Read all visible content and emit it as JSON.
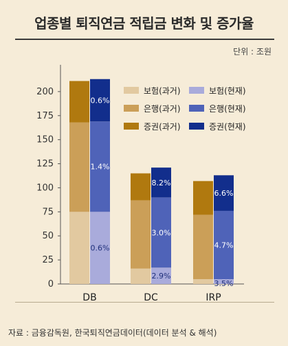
{
  "title": "업종별 퇴직연금 적립금 변화 및 증가율",
  "unit": "단위 : 조원",
  "source": "자료 : 금융감독원, 한국퇴직연금데이터(데이터 분석 & 해석)",
  "chart_data": {
    "type": "bar",
    "stacked": true,
    "categories": [
      "DB",
      "DC",
      "IRP"
    ],
    "ylim": [
      0,
      225
    ],
    "yticks": [
      0,
      25,
      50,
      75,
      100,
      125,
      150,
      175,
      200
    ],
    "grid": false,
    "legend_position": "top-right",
    "groups": [
      {
        "group": "past",
        "series": [
          {
            "name": "보험(과거)",
            "color": "#e2c9a0",
            "values": [
              75,
              16,
              5
            ]
          },
          {
            "name": "은행(과거)",
            "color": "#cb9f58",
            "values": [
              93,
              71,
              67
            ]
          },
          {
            "name": "증권(과거)",
            "color": "#b0790f",
            "values": [
              43,
              28,
              35
            ]
          }
        ]
      },
      {
        "group": "present",
        "series": [
          {
            "name": "보험(현재)",
            "color": "#a9abdb",
            "values": [
              75,
              17,
              5
            ],
            "labels": [
              "0.6%",
              "2.9%",
              "3.5%"
            ]
          },
          {
            "name": "은행(현재)",
            "color": "#4f63b8",
            "values": [
              94,
              73,
              71
            ],
            "labels": [
              "1.4%",
              "3.0%",
              "4.7%"
            ]
          },
          {
            "name": "증권(현재)",
            "color": "#122e8c",
            "values": [
              44,
              31,
              37
            ],
            "labels": [
              "0.6%",
              "8.2%",
              "6.6%"
            ]
          }
        ]
      }
    ]
  }
}
